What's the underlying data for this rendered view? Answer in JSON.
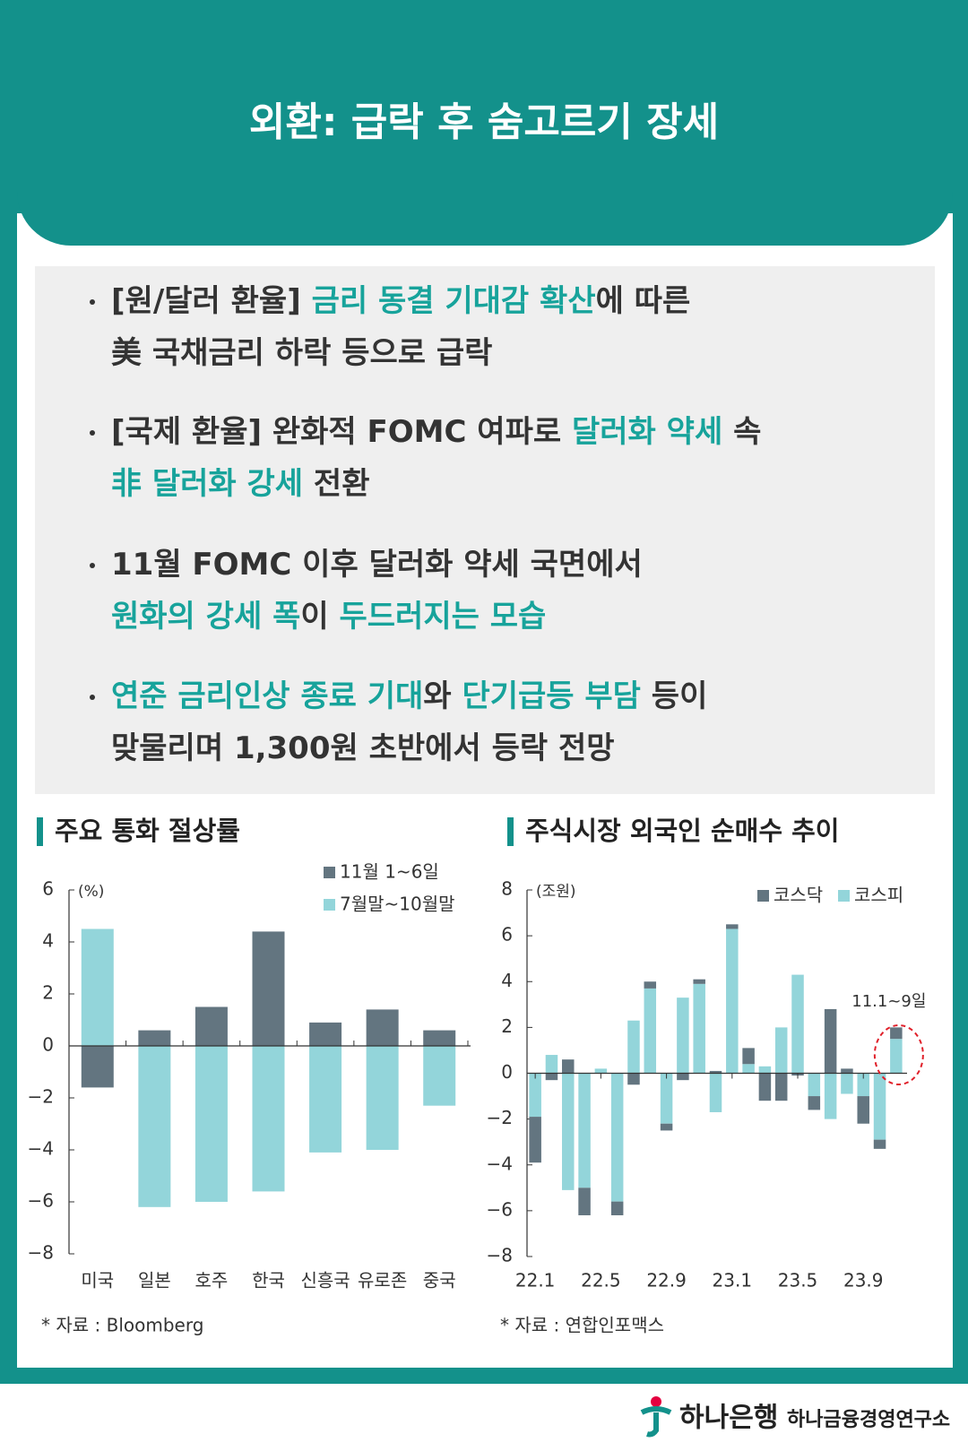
{
  "header": {
    "title": "외환: 급락 후 숨고르기 장세"
  },
  "bullets": [
    [
      [
        {
          "text": "[원/달러 환율] ",
          "color": "#333333"
        },
        {
          "text": "금리 동결 기대감 확산",
          "color": "#17a39b"
        },
        {
          "text": "에 따른",
          "color": "#333333"
        }
      ],
      [
        {
          "text": "美 국채금리 하락 등으로 급락",
          "color": "#333333"
        }
      ]
    ],
    [
      [
        {
          "text": "[국제 환율] 완화적 FOMC 여파로 ",
          "color": "#333333"
        },
        {
          "text": "달러화 약세",
          "color": "#17a39b"
        },
        {
          "text": " 속",
          "color": "#333333"
        }
      ],
      [
        {
          "text": "非 달러화 강세",
          "color": "#17a39b"
        },
        {
          "text": " 전환",
          "color": "#333333"
        }
      ]
    ],
    [
      [
        {
          "text": "11월 FOMC 이후 달러화 약세 국면에서",
          "color": "#333333"
        }
      ],
      [
        {
          "text": "원화의 강세 폭",
          "color": "#17a39b"
        },
        {
          "text": "이 ",
          "color": "#333333"
        },
        {
          "text": "두드러지는 모습",
          "color": "#17a39b"
        }
      ]
    ],
    [
      [
        {
          "text": "연준 금리인상 종료 기대",
          "color": "#17a39b"
        },
        {
          "text": "와 ",
          "color": "#333333"
        },
        {
          "text": "단기급등 부담",
          "color": "#17a39b"
        },
        {
          "text": " 등이",
          "color": "#333333"
        }
      ],
      [
        {
          "text": "맞물리며 1,300원 초반에서 등락 전망",
          "color": "#333333"
        }
      ]
    ]
  ],
  "chart_data": [
    {
      "type": "bar",
      "title": "주요 통화 절상률",
      "y_unit": "(%)",
      "categories": [
        "미국",
        "일본",
        "호주",
        "한국",
        "신흥국",
        "유로존",
        "중국"
      ],
      "series": [
        {
          "name": "11월 1~6일",
          "color": "#637580",
          "values": [
            -1.6,
            0.6,
            1.5,
            4.4,
            0.9,
            1.4,
            0.6
          ]
        },
        {
          "name": "7월말~10월말",
          "color": "#93d5da",
          "values": [
            4.5,
            -6.2,
            -6.0,
            -5.6,
            -4.1,
            -4.0,
            -2.3
          ]
        }
      ],
      "ylim": [
        -8,
        6
      ],
      "yticks": [
        {
          "value": -8,
          "label": "−8"
        },
        {
          "value": -6,
          "label": "−6"
        },
        {
          "value": -4,
          "label": "−4"
        },
        {
          "value": -2,
          "label": "−2"
        },
        0,
        2,
        4,
        6
      ],
      "source": "* 자료 : Bloomberg"
    },
    {
      "type": "stacked_bar",
      "title": "주식시장 외국인 순매수 추이",
      "y_unit": "(조원)",
      "categories": [
        "22.1",
        null,
        null,
        null,
        "22.5",
        null,
        null,
        null,
        "22.9",
        null,
        null,
        null,
        "23.1",
        null,
        null,
        null,
        "23.5",
        null,
        null,
        null,
        "23.9",
        null,
        null
      ],
      "series": [
        {
          "name": "코스닥",
          "color": "#637580",
          "values": [
            -2.0,
            -0.3,
            0.6,
            -1.2,
            0,
            -0.6,
            -0.5,
            0.3,
            -0.3,
            -0.3,
            0.2,
            0.1,
            0.2,
            0.7,
            -1.2,
            -1.2,
            -0.1,
            -0.6,
            2.8,
            0.2,
            -1.2,
            -0.4,
            0.5
          ]
        },
        {
          "name": "코스피",
          "color": "#93d5da",
          "values": [
            -1.9,
            0.8,
            -5.1,
            -5.0,
            0.2,
            -5.6,
            2.3,
            3.7,
            -2.2,
            3.3,
            3.9,
            -1.7,
            6.3,
            0.4,
            0.3,
            2.0,
            4.3,
            -1.0,
            -2.0,
            -0.9,
            -1.0,
            -2.9,
            1.5
          ]
        }
      ],
      "ylim": [
        -8,
        8
      ],
      "yticks": [
        {
          "value": -8,
          "label": "−8"
        },
        {
          "value": -6,
          "label": "−6"
        },
        {
          "value": -4,
          "label": "−4"
        },
        {
          "value": -2,
          "label": "−2"
        },
        0,
        2,
        4,
        6,
        8
      ],
      "annotation": "11.1~9일",
      "source": "* 자료 : 연합인포맥스"
    }
  ],
  "footer": {
    "bank": "하나은행",
    "institute": "하나금융경영연구소"
  }
}
